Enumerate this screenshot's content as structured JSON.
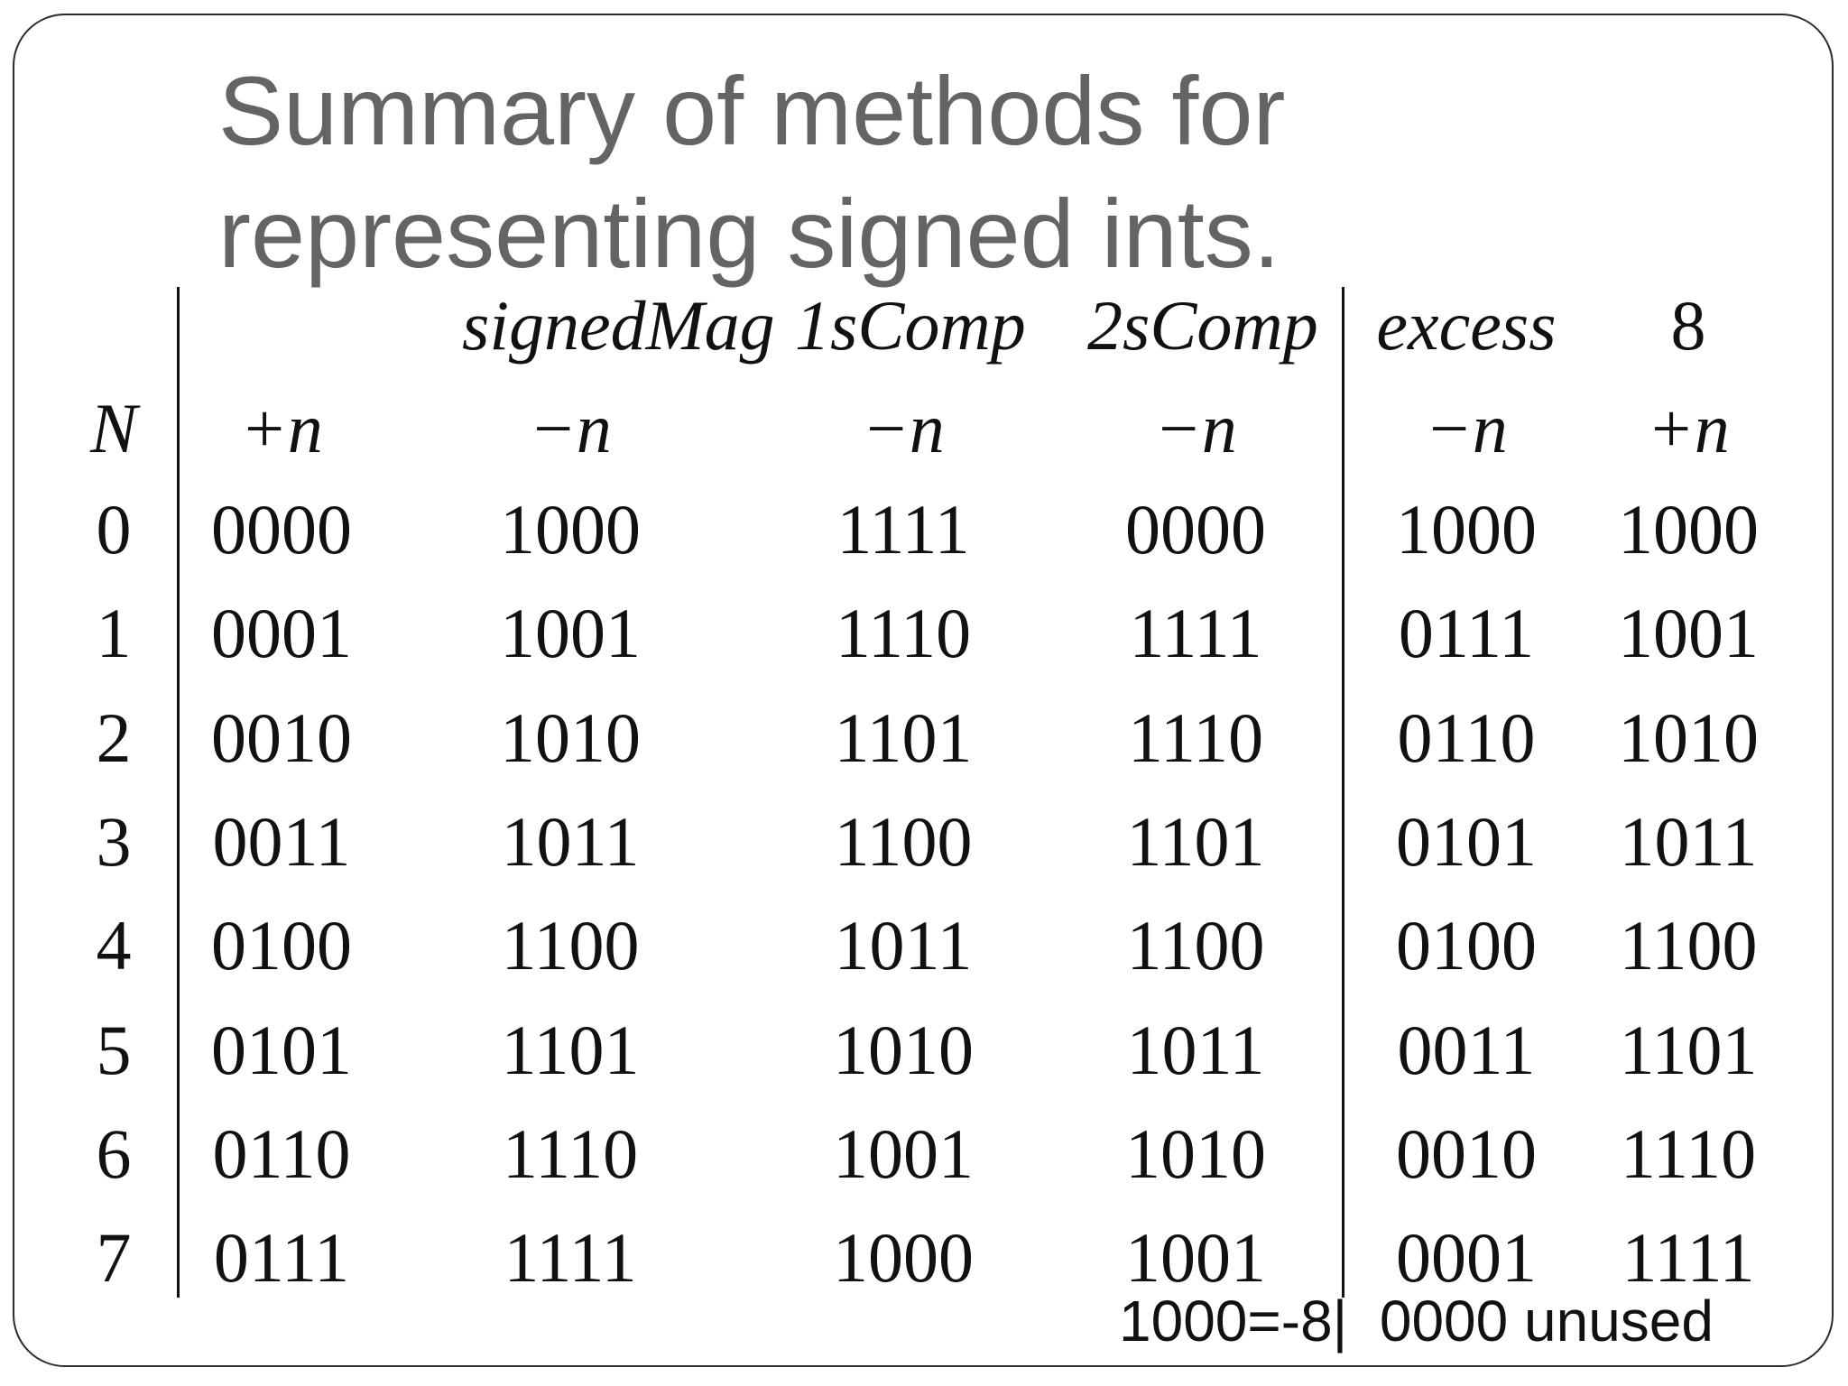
{
  "slide": {
    "title_lines": [
      "Summary of methods for",
      "representing signed ints."
    ],
    "footnote": "1000=-8|  0000 unused"
  },
  "table": {
    "group_headers": [
      "signedMag",
      "1sComp",
      "2sComp",
      "excess",
      "8"
    ],
    "column_headers": [
      "N",
      "+n",
      "−n",
      "−n",
      "−n",
      "−n",
      "+n"
    ],
    "rows": [
      [
        "0",
        "0000",
        "1000",
        "1111",
        "0000",
        "1000",
        "1000"
      ],
      [
        "1",
        "0001",
        "1001",
        "1110",
        "1111",
        "0111",
        "1001"
      ],
      [
        "2",
        "0010",
        "1010",
        "1101",
        "1110",
        "0110",
        "1010"
      ],
      [
        "3",
        "0011",
        "1011",
        "1100",
        "1101",
        "0101",
        "1011"
      ],
      [
        "4",
        "0100",
        "1100",
        "1011",
        "1100",
        "0100",
        "1100"
      ],
      [
        "5",
        "0101",
        "1101",
        "1010",
        "1011",
        "0011",
        "1101"
      ],
      [
        "6",
        "0110",
        "1110",
        "1001",
        "1010",
        "0010",
        "1110"
      ],
      [
        "7",
        "0111",
        "1111",
        "1000",
        "1001",
        "0001",
        "1111"
      ]
    ]
  }
}
